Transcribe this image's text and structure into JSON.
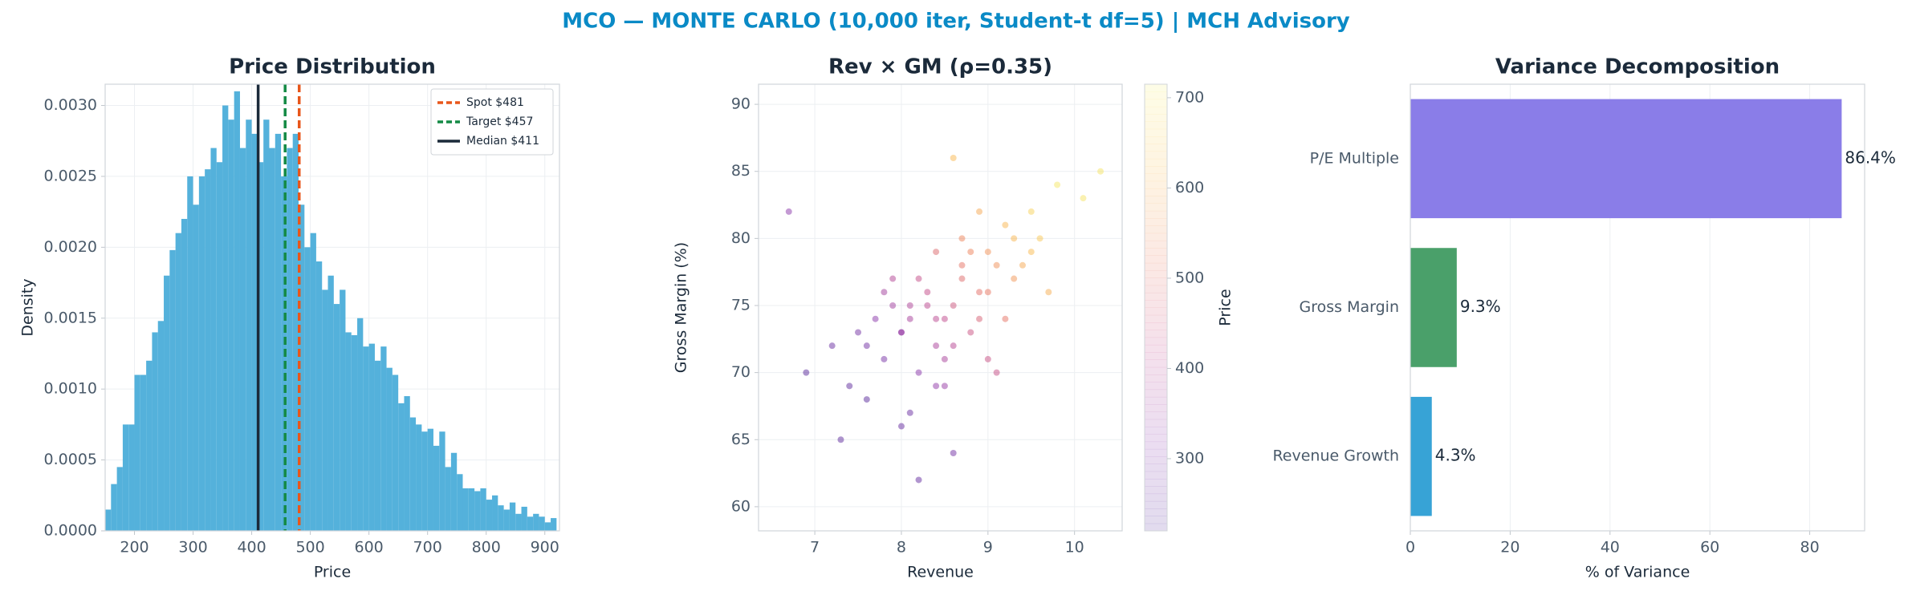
{
  "chart_data": [
    {
      "type": "histogram",
      "suptitle": "MCO — MONTE CARLO (10,000 iter, Student-t df=5) | MCH Advisory",
      "title": "Price Distribution",
      "xlabel": "Price",
      "ylabel": "Density",
      "color": "#4badd9",
      "grid": true,
      "bins": [
        150,
        160,
        170,
        180,
        190,
        200,
        210,
        220,
        230,
        240,
        250,
        260,
        270,
        280,
        290,
        300,
        310,
        320,
        330,
        340,
        350,
        360,
        370,
        380,
        390,
        400,
        410,
        420,
        430,
        440,
        450,
        460,
        470,
        480,
        490,
        500,
        510,
        520,
        530,
        540,
        550,
        560,
        570,
        580,
        590,
        600,
        610,
        620,
        630,
        640,
        650,
        660,
        670,
        680,
        690,
        700,
        710,
        720,
        730,
        740,
        750,
        760,
        770,
        780,
        790,
        800,
        810,
        820,
        830,
        840,
        850,
        860,
        870,
        880,
        890,
        900,
        910,
        920
      ],
      "values": [
        0.00015,
        0.00033,
        0.00045,
        0.00075,
        0.00075,
        0.0011,
        0.0011,
        0.0012,
        0.0014,
        0.00148,
        0.0018,
        0.00198,
        0.0021,
        0.0022,
        0.0025,
        0.0023,
        0.0025,
        0.00255,
        0.0027,
        0.0026,
        0.003,
        0.0029,
        0.0031,
        0.0027,
        0.0029,
        0.0028,
        0.0026,
        0.0029,
        0.0027,
        0.0028,
        0.0025,
        0.0027,
        0.0028,
        0.0023,
        0.002,
        0.0021,
        0.0019,
        0.0017,
        0.0018,
        0.0016,
        0.0017,
        0.0014,
        0.00138,
        0.0015,
        0.0013,
        0.00132,
        0.0012,
        0.0013,
        0.00115,
        0.0011,
        0.0009,
        0.00095,
        0.0008,
        0.00075,
        0.0007,
        0.00072,
        0.0006,
        0.0007,
        0.00045,
        0.00055,
        0.0004,
        0.0003,
        0.0003,
        0.00028,
        0.0003,
        0.00022,
        0.00025,
        0.00018,
        0.00015,
        0.0002,
        0.00012,
        0.00017,
        0.0001,
        0.00012,
        0.0001,
        6e-05,
        9e-05
      ],
      "xlim": [
        150,
        925
      ],
      "xticks": [
        200,
        300,
        400,
        500,
        600,
        700,
        800,
        900
      ],
      "ylim": [
        0,
        0.00315
      ],
      "yticks": [
        {
          "value": 0,
          "label": "0.0000"
        },
        {
          "value": 0.0005,
          "label": "0.0005"
        },
        {
          "value": 0.001,
          "label": "0.0010"
        },
        {
          "value": 0.0015,
          "label": "0.0015"
        },
        {
          "value": 0.002,
          "label": "0.0020"
        },
        {
          "value": 0.0025,
          "label": "0.0025"
        },
        {
          "value": 0.003,
          "label": "0.0030"
        }
      ],
      "lines": [
        {
          "name": "Spot $481",
          "value": 481,
          "color": "#e8561a",
          "style": "dashed"
        },
        {
          "name": "Target $457",
          "value": 457,
          "color": "#148a45",
          "style": "dashed"
        },
        {
          "name": "Median $411",
          "value": 411,
          "color": "#1b2a3a",
          "style": "solid"
        }
      ],
      "legend": "upper right"
    },
    {
      "type": "scatter",
      "title": "Rev × GM (ρ=0.35)",
      "xlabel": "Revenue",
      "ylabel": "Gross Margin (%)",
      "clabel": "Price",
      "grid": true,
      "x": [
        8.1,
        8.4,
        8.7,
        9.0,
        8.2,
        7.8,
        8.9,
        9.3,
        8.5,
        7.6,
        8.0,
        8.6,
        9.1,
        9.5,
        7.4,
        8.3,
        8.8,
        9.2,
        7.9,
        8.5,
        8.0,
        8.7,
        9.6,
        7.2,
        8.4,
        8.9,
        9.8,
        7.7,
        8.2,
        8.6,
        9.0,
        9.4,
        7.5,
        8.1,
        8.8,
        10.1,
        6.9,
        8.3,
        9.2,
        8.6,
        7.9,
        8.4,
        9.0,
        9.7,
        7.3,
        8.0,
        8.5,
        8.9,
        9.3,
        8.2,
        6.7,
        10.3,
        8.6,
        7.8,
        9.1,
        8.4,
        8.7,
        9.5,
        8.1,
        7.6
      ],
      "y": [
        74,
        72,
        77,
        79,
        70,
        71,
        76,
        80,
        74,
        68,
        73,
        75,
        78,
        82,
        69,
        76,
        73,
        81,
        75,
        71,
        66,
        78,
        80,
        72,
        69,
        74,
        84,
        74,
        77,
        72,
        76,
        78,
        73,
        67,
        79,
        83,
        70,
        75,
        74,
        64,
        77,
        79,
        71,
        76,
        65,
        73,
        69,
        82,
        77,
        62,
        82,
        85,
        86,
        76,
        70,
        74,
        80,
        79,
        75,
        72
      ],
      "c": [
        372,
        378,
        489,
        555,
        324,
        291,
        498,
        606,
        420,
        240,
        345,
        447,
        552,
        660,
        250,
        426,
        441,
        609,
        363,
        375,
        260,
        504,
        642,
        265,
        333,
        468,
        700,
        324,
        429,
        402,
        510,
        588,
        285,
        267,
        531,
        690,
        240,
        411,
        504,
        282,
        393,
        483,
        435,
        594,
        250,
        345,
        345,
        588,
        561,
        255,
        324,
        690,
        612,
        366,
        432,
        408,
        534,
        615,
        387,
        282
      ],
      "colormap": [
        "#3b0f8c",
        "#7a1fa2",
        "#b8327f",
        "#e8694a",
        "#f9b33a",
        "#f4ee5a"
      ],
      "xlim": [
        6.35,
        10.55
      ],
      "xticks": [
        7,
        8,
        9,
        10
      ],
      "ylim": [
        58.2,
        91.5
      ],
      "yticks": [
        60,
        65,
        70,
        75,
        80,
        85,
        90
      ],
      "clim": [
        220,
        715
      ],
      "cticks": [
        300,
        400,
        500,
        600,
        700
      ]
    },
    {
      "type": "hbar",
      "title": "Variance Decomposition",
      "xlabel": "% of Variance",
      "grid": true,
      "categories": [
        "P/E Multiple",
        "Gross Margin",
        "Revenue Growth"
      ],
      "values": [
        86.4,
        9.3,
        4.3
      ],
      "value_labels": [
        "86.4%",
        "9.3%",
        "4.3%"
      ],
      "colors": [
        "#8a7de8",
        "#4aa06a",
        "#37a3d6"
      ],
      "xlim": [
        0,
        91
      ],
      "xticks": [
        0,
        20,
        40,
        60,
        80
      ]
    }
  ]
}
